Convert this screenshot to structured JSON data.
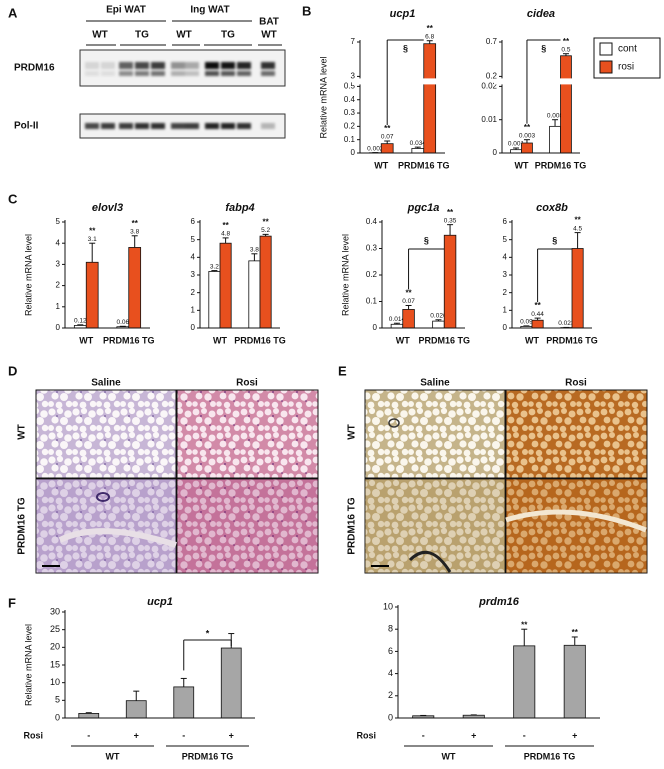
{
  "panel_labels": [
    "A",
    "B",
    "C",
    "D",
    "E",
    "F"
  ],
  "blot": {
    "groups": [
      "Epi WAT",
      "Ing WAT"
    ],
    "lanes": [
      "WT",
      "TG",
      "WT",
      "TG"
    ],
    "bat": "BAT",
    "bat_lane": "WT",
    "rows": [
      "PRDM16",
      "Pol-II"
    ]
  },
  "chart_data": [
    {
      "type": "bar",
      "title": "ucp1",
      "y_label": "Relative mRNA level",
      "categories": [
        "WT",
        "PRDM16 TG"
      ],
      "series": [
        {
          "color": "#ffffff",
          "values": [
            0.002,
            0.034
          ],
          "errors": [
            0.001,
            0.01
          ]
        },
        {
          "color": "#e8501e",
          "values": [
            0.07,
            6.8
          ],
          "errors": [
            0.02,
            0.35
          ],
          "value_marks": [
            "**",
            "**"
          ]
        }
      ],
      "ylim": [
        0,
        7
      ],
      "yticks": [
        0,
        0.1,
        0.2,
        0.3,
        0.4,
        0.5,
        3,
        7
      ],
      "y_break": [
        0.5,
        3
      ],
      "bracket_label": "§"
    },
    {
      "type": "bar",
      "title": "cidea",
      "categories": [
        "WT",
        "PRDM16 TG"
      ],
      "series": [
        {
          "name": "cont",
          "color": "#ffffff",
          "values": [
            0.001,
            0.008
          ],
          "errors": [
            0.0005,
            0.002
          ]
        },
        {
          "name": "rosi",
          "color": "#e8501e",
          "values": [
            0.003,
            0.5
          ],
          "errors": [
            0.001,
            0.03
          ],
          "value_marks": [
            "**",
            "**"
          ]
        }
      ],
      "ylim": [
        0,
        0.7
      ],
      "yticks": [
        0,
        0.01,
        0.02,
        0.2,
        0.7
      ],
      "y_break": [
        0.02,
        0.2
      ],
      "bracket_label": "§",
      "legend": "right"
    },
    {
      "type": "bar",
      "title": "elovl3",
      "y_label": "Relative mRNA level",
      "categories": [
        "WT",
        "PRDM16 TG"
      ],
      "series": [
        {
          "color": "#ffffff",
          "values": [
            0.12,
            0.06
          ],
          "errors": [
            0.03,
            0.02
          ]
        },
        {
          "color": "#e8501e",
          "values": [
            3.1,
            3.8
          ],
          "errors": [
            0.9,
            0.55
          ],
          "value_marks": [
            "**",
            "**"
          ]
        }
      ],
      "ylim": [
        0,
        5
      ],
      "yticks": [
        0,
        1,
        2,
        3,
        4,
        5
      ]
    },
    {
      "type": "bar",
      "title": "fabp4",
      "categories": [
        "WT",
        "PRDM16 TG"
      ],
      "series": [
        {
          "color": "#ffffff",
          "values": [
            3.2,
            3.8
          ],
          "errors": [
            0.05,
            0.4
          ]
        },
        {
          "color": "#e8501e",
          "values": [
            4.8,
            5.2
          ],
          "errors": [
            0.3,
            0.1
          ],
          "value_marks": [
            "**",
            "**"
          ]
        }
      ],
      "ylim": [
        0,
        6
      ],
      "yticks": [
        0,
        1,
        2,
        3,
        4,
        5,
        6
      ]
    },
    {
      "type": "bar",
      "title": "pgc1a",
      "y_label": "Relative mRNA level",
      "categories": [
        "WT",
        "PRDM16 TG"
      ],
      "series": [
        {
          "color": "#ffffff",
          "values": [
            0.014,
            0.026
          ],
          "errors": [
            0.004,
            0.005
          ]
        },
        {
          "color": "#e8501e",
          "values": [
            0.07,
            0.35
          ],
          "errors": [
            0.015,
            0.04
          ],
          "value_marks": [
            "**",
            "**"
          ]
        }
      ],
      "ylim": [
        0,
        0.4
      ],
      "yticks": [
        0,
        0.1,
        0.2,
        0.3,
        0.4
      ],
      "bracket_label": "§"
    },
    {
      "type": "bar",
      "title": "cox8b",
      "categories": [
        "WT",
        "PRDM16 TG"
      ],
      "series": [
        {
          "color": "#ffffff",
          "values": [
            0.09,
            0.023
          ],
          "errors": [
            0.03,
            0.01
          ]
        },
        {
          "color": "#e8501e",
          "values": [
            0.44,
            4.5
          ],
          "errors": [
            0.12,
            0.9
          ],
          "value_marks": [
            "**",
            "**"
          ]
        }
      ],
      "ylim": [
        0,
        6
      ],
      "yticks": [
        0,
        1,
        2,
        3,
        4,
        5,
        6
      ],
      "bracket_label": "§"
    },
    {
      "type": "bar",
      "title": "ucp1",
      "y_label": "Relative mRNA level",
      "categories": [
        "-",
        "+",
        "-",
        "+"
      ],
      "groups": [
        "WT",
        "PRDM16 TG"
      ],
      "x_row_label": "Rosi",
      "color": "#a6a6a6",
      "values": [
        1.3,
        4.9,
        8.8,
        19.8
      ],
      "errors": [
        0.2,
        2.7,
        2.4,
        4.1
      ],
      "ylim": [
        0,
        30
      ],
      "yticks": [
        0,
        5,
        10,
        15,
        20,
        25,
        30
      ],
      "bracket_label": "*"
    },
    {
      "type": "bar",
      "title": "prdm16",
      "categories": [
        "-",
        "+",
        "-",
        "+"
      ],
      "groups": [
        "WT",
        "PRDM16 TG"
      ],
      "x_row_label": "Rosi",
      "color": "#a6a6a6",
      "values": [
        0.2,
        0.25,
        6.5,
        6.55
      ],
      "errors": [
        0.03,
        0.03,
        1.5,
        0.75
      ],
      "value_marks": [
        null,
        null,
        "**",
        "**"
      ],
      "ylim": [
        0,
        10
      ],
      "yticks": [
        0,
        2,
        4,
        6,
        8,
        10
      ]
    }
  ],
  "histology": [
    {
      "columns": [
        "Saline",
        "Rosi"
      ],
      "rows": [
        "WT",
        "PRDM16 TG"
      ]
    },
    {
      "columns": [
        "Saline",
        "Rosi"
      ],
      "rows": [
        "WT",
        "PRDM16 TG"
      ]
    }
  ]
}
